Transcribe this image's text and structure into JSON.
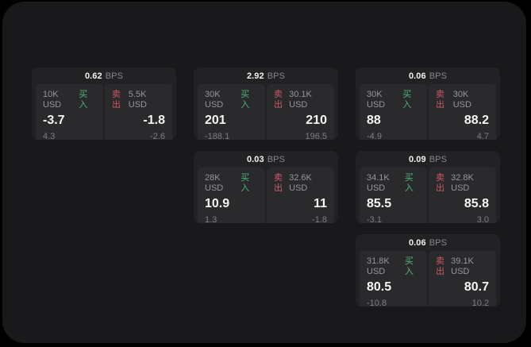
{
  "page": {
    "bps_suffix": "BPS",
    "buy_label": "买入",
    "sell_label": "卖出"
  },
  "colors": {
    "buy_green": "#4db678",
    "sell_red": "#cc5966",
    "surface": "#19191b",
    "card": "#222224",
    "panel": "#2a2a2c",
    "value_white": "#f5f5f5",
    "label_grey": "#96969b"
  },
  "cards": [
    {
      "bps": "0.62",
      "row": 1,
      "col": 1,
      "buy": {
        "amount": "10K USD",
        "value": "-3.7",
        "delta": "4.3"
      },
      "sell": {
        "amount": "5.5K USD",
        "value": "-1.8",
        "delta": "-2.6"
      }
    },
    {
      "bps": "2.92",
      "row": 1,
      "col": 2,
      "buy": {
        "amount": "30K USD",
        "value": "201",
        "delta": "-188.1"
      },
      "sell": {
        "amount": "30.1K USD",
        "value": "210",
        "delta": "196.5"
      }
    },
    {
      "bps": "0.06",
      "row": 1,
      "col": 3,
      "buy": {
        "amount": "30K USD",
        "value": "88",
        "delta": "-4.9"
      },
      "sell": {
        "amount": "30K USD",
        "value": "88.2",
        "delta": "4.7"
      }
    },
    {
      "bps": "0.03",
      "row": 2,
      "col": 2,
      "buy": {
        "amount": "28K USD",
        "value": "10.9",
        "delta": "1.3"
      },
      "sell": {
        "amount": "32.6K USD",
        "value": "11",
        "delta": "-1.8"
      }
    },
    {
      "bps": "0.09",
      "row": 2,
      "col": 3,
      "buy": {
        "amount": "34.1K USD",
        "value": "85.5",
        "delta": "-3.1"
      },
      "sell": {
        "amount": "32.8K USD",
        "value": "85.8",
        "delta": "3.0"
      }
    },
    {
      "bps": "0.06",
      "row": 3,
      "col": 3,
      "buy": {
        "amount": "31.8K USD",
        "value": "80.5",
        "delta": "-10.8"
      },
      "sell": {
        "amount": "39.1K USD",
        "value": "80.7",
        "delta": "10.2"
      }
    }
  ]
}
